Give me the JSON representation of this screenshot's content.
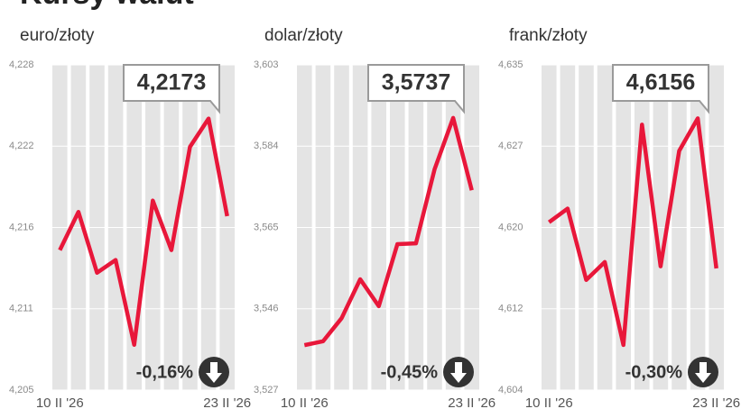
{
  "title": "Kursy walut",
  "chart_data": [
    {
      "type": "line",
      "subtitle": "euro/złoty",
      "categories": [
        "10 II '26",
        null,
        null,
        null,
        null,
        null,
        null,
        null,
        null,
        "23 II '26"
      ],
      "values": [
        4.2149,
        4.2176,
        4.2133,
        4.2142,
        4.2082,
        4.2184,
        4.2149,
        4.2222,
        4.2242,
        4.2173
      ],
      "value_labels": [
        null,
        null,
        null,
        null,
        null,
        null,
        null,
        null,
        null,
        "4,2173"
      ],
      "color": "#e8173a",
      "ylim": [
        4.205,
        4.228
      ],
      "yticks": [
        {
          "value": 4.205,
          "label": "4,205"
        },
        {
          "value": 4.21075,
          "label": "4,211"
        },
        {
          "value": 4.2165,
          "label": "4,216"
        },
        {
          "value": 4.22225,
          "label": "4,222"
        },
        {
          "value": 4.228,
          "label": "4,228"
        }
      ],
      "change": {
        "value": -0.16,
        "label": "-0,16%"
      }
    },
    {
      "type": "line",
      "subtitle": "dolar/złoty",
      "categories": [
        "10 II '26",
        null,
        null,
        null,
        null,
        null,
        null,
        null,
        null,
        "23 II '26"
      ],
      "values": [
        3.5375,
        3.5384,
        3.5438,
        3.5529,
        3.5466,
        3.5611,
        3.5613,
        3.5786,
        3.5906,
        3.5737
      ],
      "value_labels": [
        null,
        null,
        null,
        null,
        null,
        null,
        null,
        null,
        null,
        "3,5737"
      ],
      "color": "#e8173a",
      "ylim": [
        3.527,
        3.603
      ],
      "yticks": [
        {
          "value": 3.527,
          "label": "3,527"
        },
        {
          "value": 3.546,
          "label": "3,546"
        },
        {
          "value": 3.565,
          "label": "3,565"
        },
        {
          "value": 3.584,
          "label": "3,584"
        },
        {
          "value": 3.603,
          "label": "3,603"
        }
      ],
      "change": {
        "value": -0.45,
        "label": "-0,45%"
      }
    },
    {
      "type": "line",
      "subtitle": "frank/złoty",
      "categories": [
        "10 II '26",
        null,
        null,
        null,
        null,
        null,
        null,
        null,
        null,
        "23 II '26"
      ],
      "values": [
        4.62,
        4.6213,
        4.6145,
        4.6162,
        4.6083,
        4.6293,
        4.6158,
        4.6268,
        4.6299,
        4.6156
      ],
      "value_labels": [
        null,
        null,
        null,
        null,
        null,
        null,
        null,
        null,
        null,
        "4,6156"
      ],
      "color": "#e8173a",
      "ylim": [
        4.604,
        4.635
      ],
      "yticks": [
        {
          "value": 4.604,
          "label": "4,604"
        },
        {
          "value": 4.61175,
          "label": "4,612"
        },
        {
          "value": 4.6195,
          "label": "4,620"
        },
        {
          "value": 4.62725,
          "label": "4,627"
        },
        {
          "value": 4.635,
          "label": "4,635"
        }
      ],
      "change": {
        "value": -0.3,
        "label": "-0,30%"
      }
    }
  ]
}
